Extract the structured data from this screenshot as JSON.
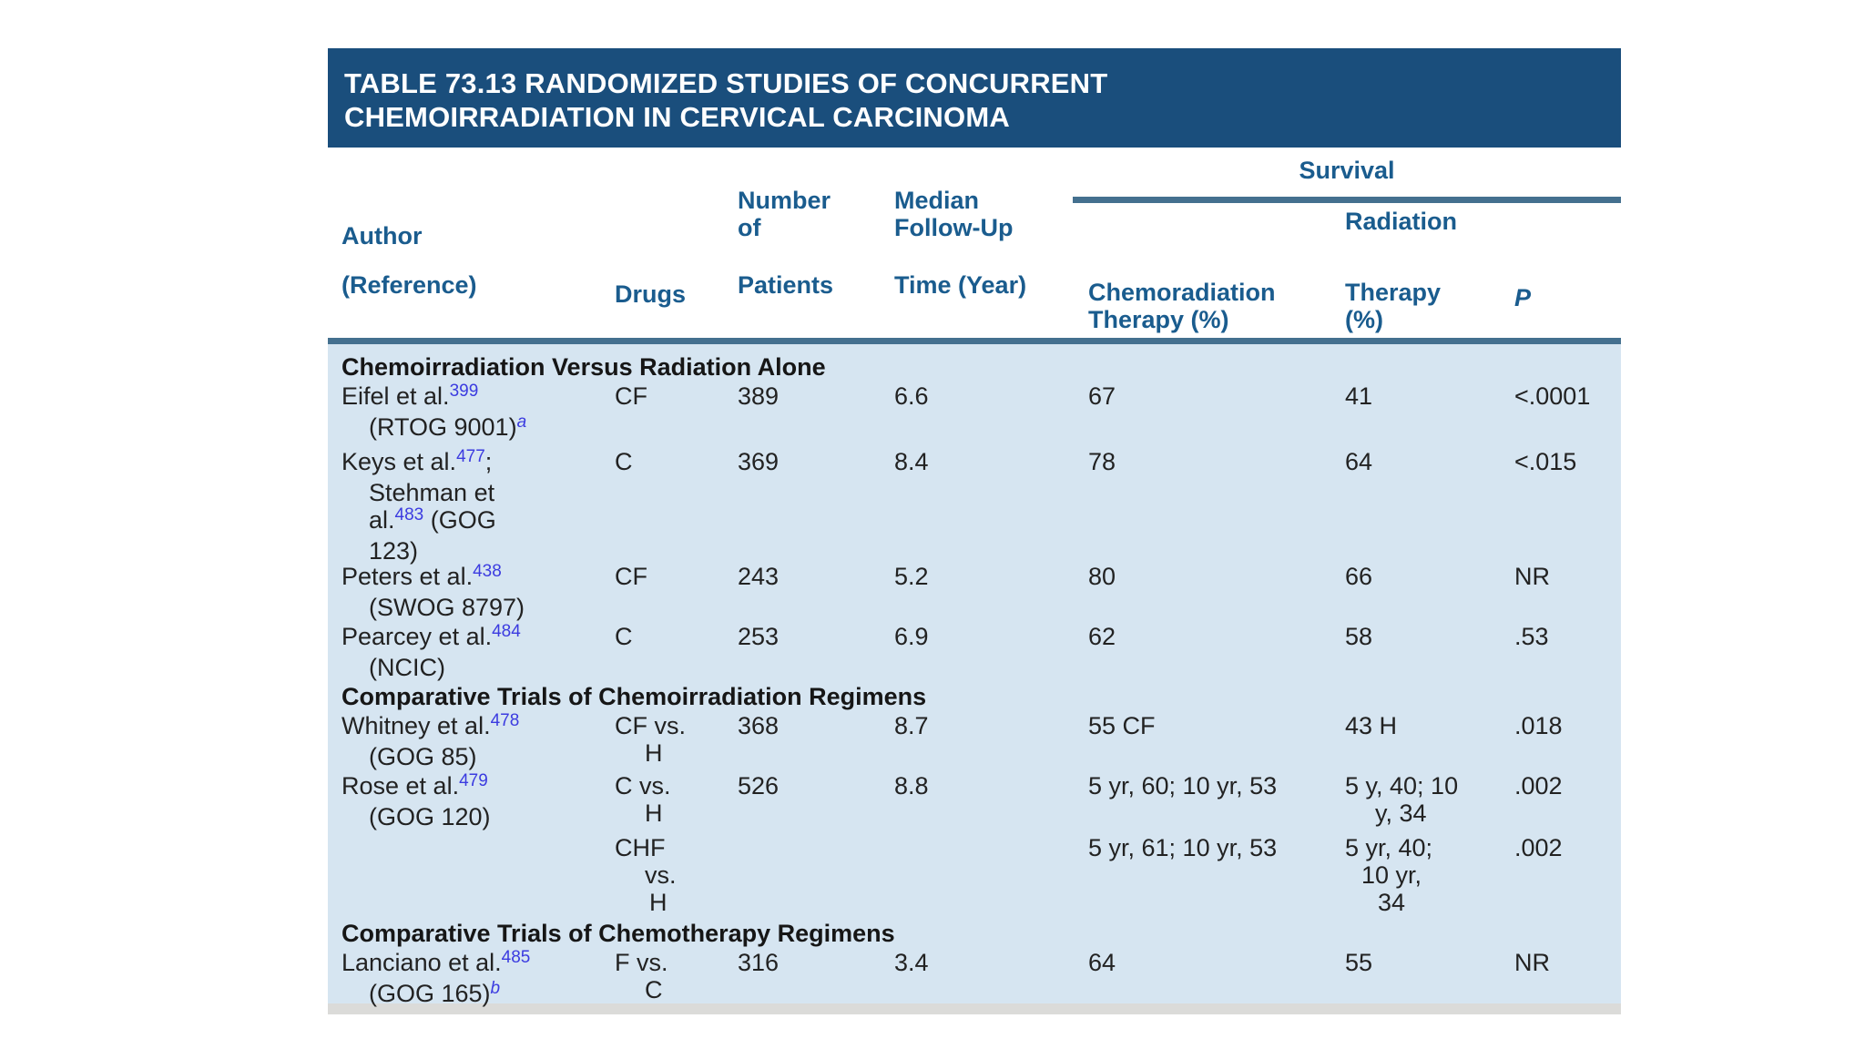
{
  "title": {
    "line1": "TABLE 73.13 RANDOMIZED STUDIES OF CONCURRENT",
    "line2": "CHEMOIRRADIATION IN CERVICAL CARCINOMA"
  },
  "header": {
    "survival_group": "Survival",
    "radiation_group": "Radiation",
    "author_l1": "Author",
    "author_l2": "(Reference)",
    "drugs": "Drugs",
    "patients_l1": "Number",
    "patients_l2": "of",
    "patients_l3": "Patients",
    "followup_l1": "Median",
    "followup_l2": "Follow-Up",
    "followup_l3": "Time (Year)",
    "chemo_l1": "Chemoradiation",
    "chemo_l2": "Therapy (%)",
    "radtherapy_l1": "Therapy",
    "radtherapy_l2": "(%)",
    "p": "P"
  },
  "colors": {
    "title_bar": "#1A4E7C",
    "header_text": "#1A5C8E",
    "rule": "#44708F",
    "body_bg": "#D6E5F1",
    "reference_link": "#3B3BE0",
    "bottom_strip": "#DBDBD9"
  },
  "table": {
    "rows": [
      {
        "type": "section",
        "label": "Chemoirradiation Versus Radiation Alone"
      },
      {
        "type": "study",
        "cells": {
          "author": [
            {
              "i": 0,
              "seg": [
                {
                  "t": "Eifel et al."
                },
                {
                  "t": "399",
                  "f": "sup"
                }
              ]
            },
            {
              "i": 30,
              "seg": [
                {
                  "t": "(RTOG 9001)"
                },
                {
                  "t": "a",
                  "f": "supi"
                }
              ]
            }
          ],
          "drugs": [
            {
              "i": 0,
              "seg": [
                {
                  "t": "CF"
                }
              ]
            }
          ],
          "patients": [
            {
              "i": 0,
              "seg": [
                {
                  "t": "389"
                }
              ]
            }
          ],
          "followup": [
            {
              "i": 0,
              "seg": [
                {
                  "t": "6.6"
                }
              ]
            }
          ],
          "chemo": [
            {
              "i": 0,
              "seg": [
                {
                  "t": "67"
                }
              ]
            }
          ],
          "radiation": [
            {
              "i": 0,
              "seg": [
                {
                  "t": "41"
                }
              ]
            }
          ],
          "p": [
            {
              "i": 0,
              "seg": [
                {
                  "t": "<.0001"
                }
              ]
            }
          ]
        }
      },
      {
        "type": "study",
        "cells": {
          "author": [
            {
              "i": 0,
              "seg": [
                {
                  "t": "Keys et al."
                },
                {
                  "t": "477",
                  "f": "sup"
                },
                {
                  "t": ";"
                }
              ]
            },
            {
              "i": 30,
              "seg": [
                {
                  "t": "Stehman et"
                }
              ]
            },
            {
              "i": 30,
              "seg": [
                {
                  "t": "al."
                },
                {
                  "t": "483",
                  "f": "sup"
                },
                {
                  "t": " (GOG"
                }
              ]
            },
            {
              "i": 30,
              "seg": [
                {
                  "t": "123)"
                }
              ]
            }
          ],
          "drugs": [
            {
              "i": 0,
              "seg": [
                {
                  "t": "C"
                }
              ]
            }
          ],
          "patients": [
            {
              "i": 0,
              "seg": [
                {
                  "t": "369"
                }
              ]
            }
          ],
          "followup": [
            {
              "i": 0,
              "seg": [
                {
                  "t": "8.4"
                }
              ]
            }
          ],
          "chemo": [
            {
              "i": 0,
              "seg": [
                {
                  "t": "78"
                }
              ]
            }
          ],
          "radiation": [
            {
              "i": 0,
              "seg": [
                {
                  "t": "64"
                }
              ]
            }
          ],
          "p": [
            {
              "i": 0,
              "seg": [
                {
                  "t": "<.015"
                }
              ]
            }
          ]
        }
      },
      {
        "type": "study",
        "cells": {
          "author": [
            {
              "i": 0,
              "seg": [
                {
                  "t": "Peters et al."
                },
                {
                  "t": "438",
                  "f": "sup"
                }
              ]
            },
            {
              "i": 30,
              "seg": [
                {
                  "t": "(SWOG 8797)"
                }
              ]
            }
          ],
          "drugs": [
            {
              "i": 0,
              "seg": [
                {
                  "t": "CF"
                }
              ]
            }
          ],
          "patients": [
            {
              "i": 0,
              "seg": [
                {
                  "t": "243"
                }
              ]
            }
          ],
          "followup": [
            {
              "i": 0,
              "seg": [
                {
                  "t": "5.2"
                }
              ]
            }
          ],
          "chemo": [
            {
              "i": 0,
              "seg": [
                {
                  "t": "80"
                }
              ]
            }
          ],
          "radiation": [
            {
              "i": 0,
              "seg": [
                {
                  "t": "66"
                }
              ]
            }
          ],
          "p": [
            {
              "i": 0,
              "seg": [
                {
                  "t": "NR"
                }
              ]
            }
          ]
        }
      },
      {
        "type": "study",
        "cells": {
          "author": [
            {
              "i": 0,
              "seg": [
                {
                  "t": "Pearcey et al."
                },
                {
                  "t": "484",
                  "f": "sup"
                }
              ]
            },
            {
              "i": 30,
              "seg": [
                {
                  "t": "(NCIC)"
                }
              ]
            }
          ],
          "drugs": [
            {
              "i": 0,
              "seg": [
                {
                  "t": "C"
                }
              ]
            }
          ],
          "patients": [
            {
              "i": 0,
              "seg": [
                {
                  "t": "253"
                }
              ]
            }
          ],
          "followup": [
            {
              "i": 0,
              "seg": [
                {
                  "t": "6.9"
                }
              ]
            }
          ],
          "chemo": [
            {
              "i": 0,
              "seg": [
                {
                  "t": "62"
                }
              ]
            }
          ],
          "radiation": [
            {
              "i": 0,
              "seg": [
                {
                  "t": "58"
                }
              ]
            }
          ],
          "p": [
            {
              "i": 0,
              "seg": [
                {
                  "t": ".53"
                }
              ]
            }
          ]
        }
      },
      {
        "type": "section",
        "label": "Comparative Trials of Chemoirradiation Regimens"
      },
      {
        "type": "study",
        "cells": {
          "author": [
            {
              "i": 0,
              "seg": [
                {
                  "t": "Whitney et al."
                },
                {
                  "t": "478",
                  "f": "sup"
                }
              ]
            },
            {
              "i": 30,
              "seg": [
                {
                  "t": "(GOG 85)"
                }
              ]
            }
          ],
          "drugs": [
            {
              "i": 0,
              "seg": [
                {
                  "t": "CF vs."
                }
              ]
            },
            {
              "i": 33,
              "seg": [
                {
                  "t": "H"
                }
              ]
            }
          ],
          "patients": [
            {
              "i": 0,
              "seg": [
                {
                  "t": "368"
                }
              ]
            }
          ],
          "followup": [
            {
              "i": 0,
              "seg": [
                {
                  "t": "8.7"
                }
              ]
            }
          ],
          "chemo": [
            {
              "i": 0,
              "seg": [
                {
                  "t": "55 CF"
                }
              ]
            }
          ],
          "radiation": [
            {
              "i": 0,
              "seg": [
                {
                  "t": "43 H"
                }
              ]
            }
          ],
          "p": [
            {
              "i": 0,
              "seg": [
                {
                  "t": ".018"
                }
              ]
            }
          ]
        }
      },
      {
        "type": "study",
        "cells": {
          "author": [
            {
              "i": 0,
              "seg": [
                {
                  "t": "Rose et al."
                },
                {
                  "t": "479",
                  "f": "sup"
                }
              ]
            },
            {
              "i": 30,
              "seg": [
                {
                  "t": "(GOG 120)"
                }
              ]
            }
          ],
          "drugs": [
            {
              "i": 0,
              "seg": [
                {
                  "t": "C vs."
                }
              ]
            },
            {
              "i": 33,
              "seg": [
                {
                  "t": "H"
                }
              ]
            }
          ],
          "patients": [
            {
              "i": 0,
              "seg": [
                {
                  "t": "526"
                }
              ]
            }
          ],
          "followup": [
            {
              "i": 0,
              "seg": [
                {
                  "t": "8.8"
                }
              ]
            }
          ],
          "chemo": [
            {
              "i": 0,
              "seg": [
                {
                  "t": "5 yr, 60; 10 yr, 53"
                }
              ]
            }
          ],
          "radiation": [
            {
              "i": 0,
              "seg": [
                {
                  "t": "5 y, 40; 10"
                }
              ]
            },
            {
              "i": 33,
              "seg": [
                {
                  "t": "y, 34"
                }
              ]
            }
          ],
          "p": [
            {
              "i": 0,
              "seg": [
                {
                  "t": ".002"
                }
              ]
            }
          ]
        }
      },
      {
        "type": "study",
        "cells": {
          "drugs": [
            {
              "i": 0,
              "seg": [
                {
                  "t": "CHF"
                }
              ]
            },
            {
              "i": 33,
              "seg": [
                {
                  "t": "vs."
                }
              ]
            },
            {
              "i": 38,
              "seg": [
                {
                  "t": "H"
                }
              ]
            }
          ],
          "chemo": [
            {
              "i": 0,
              "seg": [
                {
                  "t": "5 yr, 61; 10 yr, 53"
                }
              ]
            }
          ],
          "radiation": [
            {
              "i": 0,
              "seg": [
                {
                  "t": "5 yr, 40;"
                }
              ]
            },
            {
              "i": 18,
              "seg": [
                {
                  "t": "10 yr,"
                }
              ]
            },
            {
              "i": 36,
              "seg": [
                {
                  "t": "34"
                }
              ]
            }
          ],
          "p": [
            {
              "i": 0,
              "seg": [
                {
                  "t": ".002"
                }
              ]
            }
          ]
        }
      },
      {
        "type": "section",
        "label": "Comparative Trials of Chemotherapy Regimens"
      },
      {
        "type": "study",
        "cells": {
          "author": [
            {
              "i": 0,
              "seg": [
                {
                  "t": "Lanciano et al."
                },
                {
                  "t": "485",
                  "f": "sup"
                }
              ]
            },
            {
              "i": 30,
              "seg": [
                {
                  "t": "(GOG 165)"
                },
                {
                  "t": "b",
                  "f": "supi"
                }
              ]
            }
          ],
          "drugs": [
            {
              "i": 0,
              "seg": [
                {
                  "t": "F vs."
                }
              ]
            },
            {
              "i": 33,
              "seg": [
                {
                  "t": "C"
                }
              ]
            }
          ],
          "patients": [
            {
              "i": 0,
              "seg": [
                {
                  "t": "316"
                }
              ]
            }
          ],
          "followup": [
            {
              "i": 0,
              "seg": [
                {
                  "t": "3.4"
                }
              ]
            }
          ],
          "chemo": [
            {
              "i": 0,
              "seg": [
                {
                  "t": "64"
                }
              ]
            }
          ],
          "radiation": [
            {
              "i": 0,
              "seg": [
                {
                  "t": "55"
                }
              ]
            }
          ],
          "p": [
            {
              "i": 0,
              "seg": [
                {
                  "t": "NR"
                }
              ]
            }
          ]
        }
      }
    ]
  }
}
